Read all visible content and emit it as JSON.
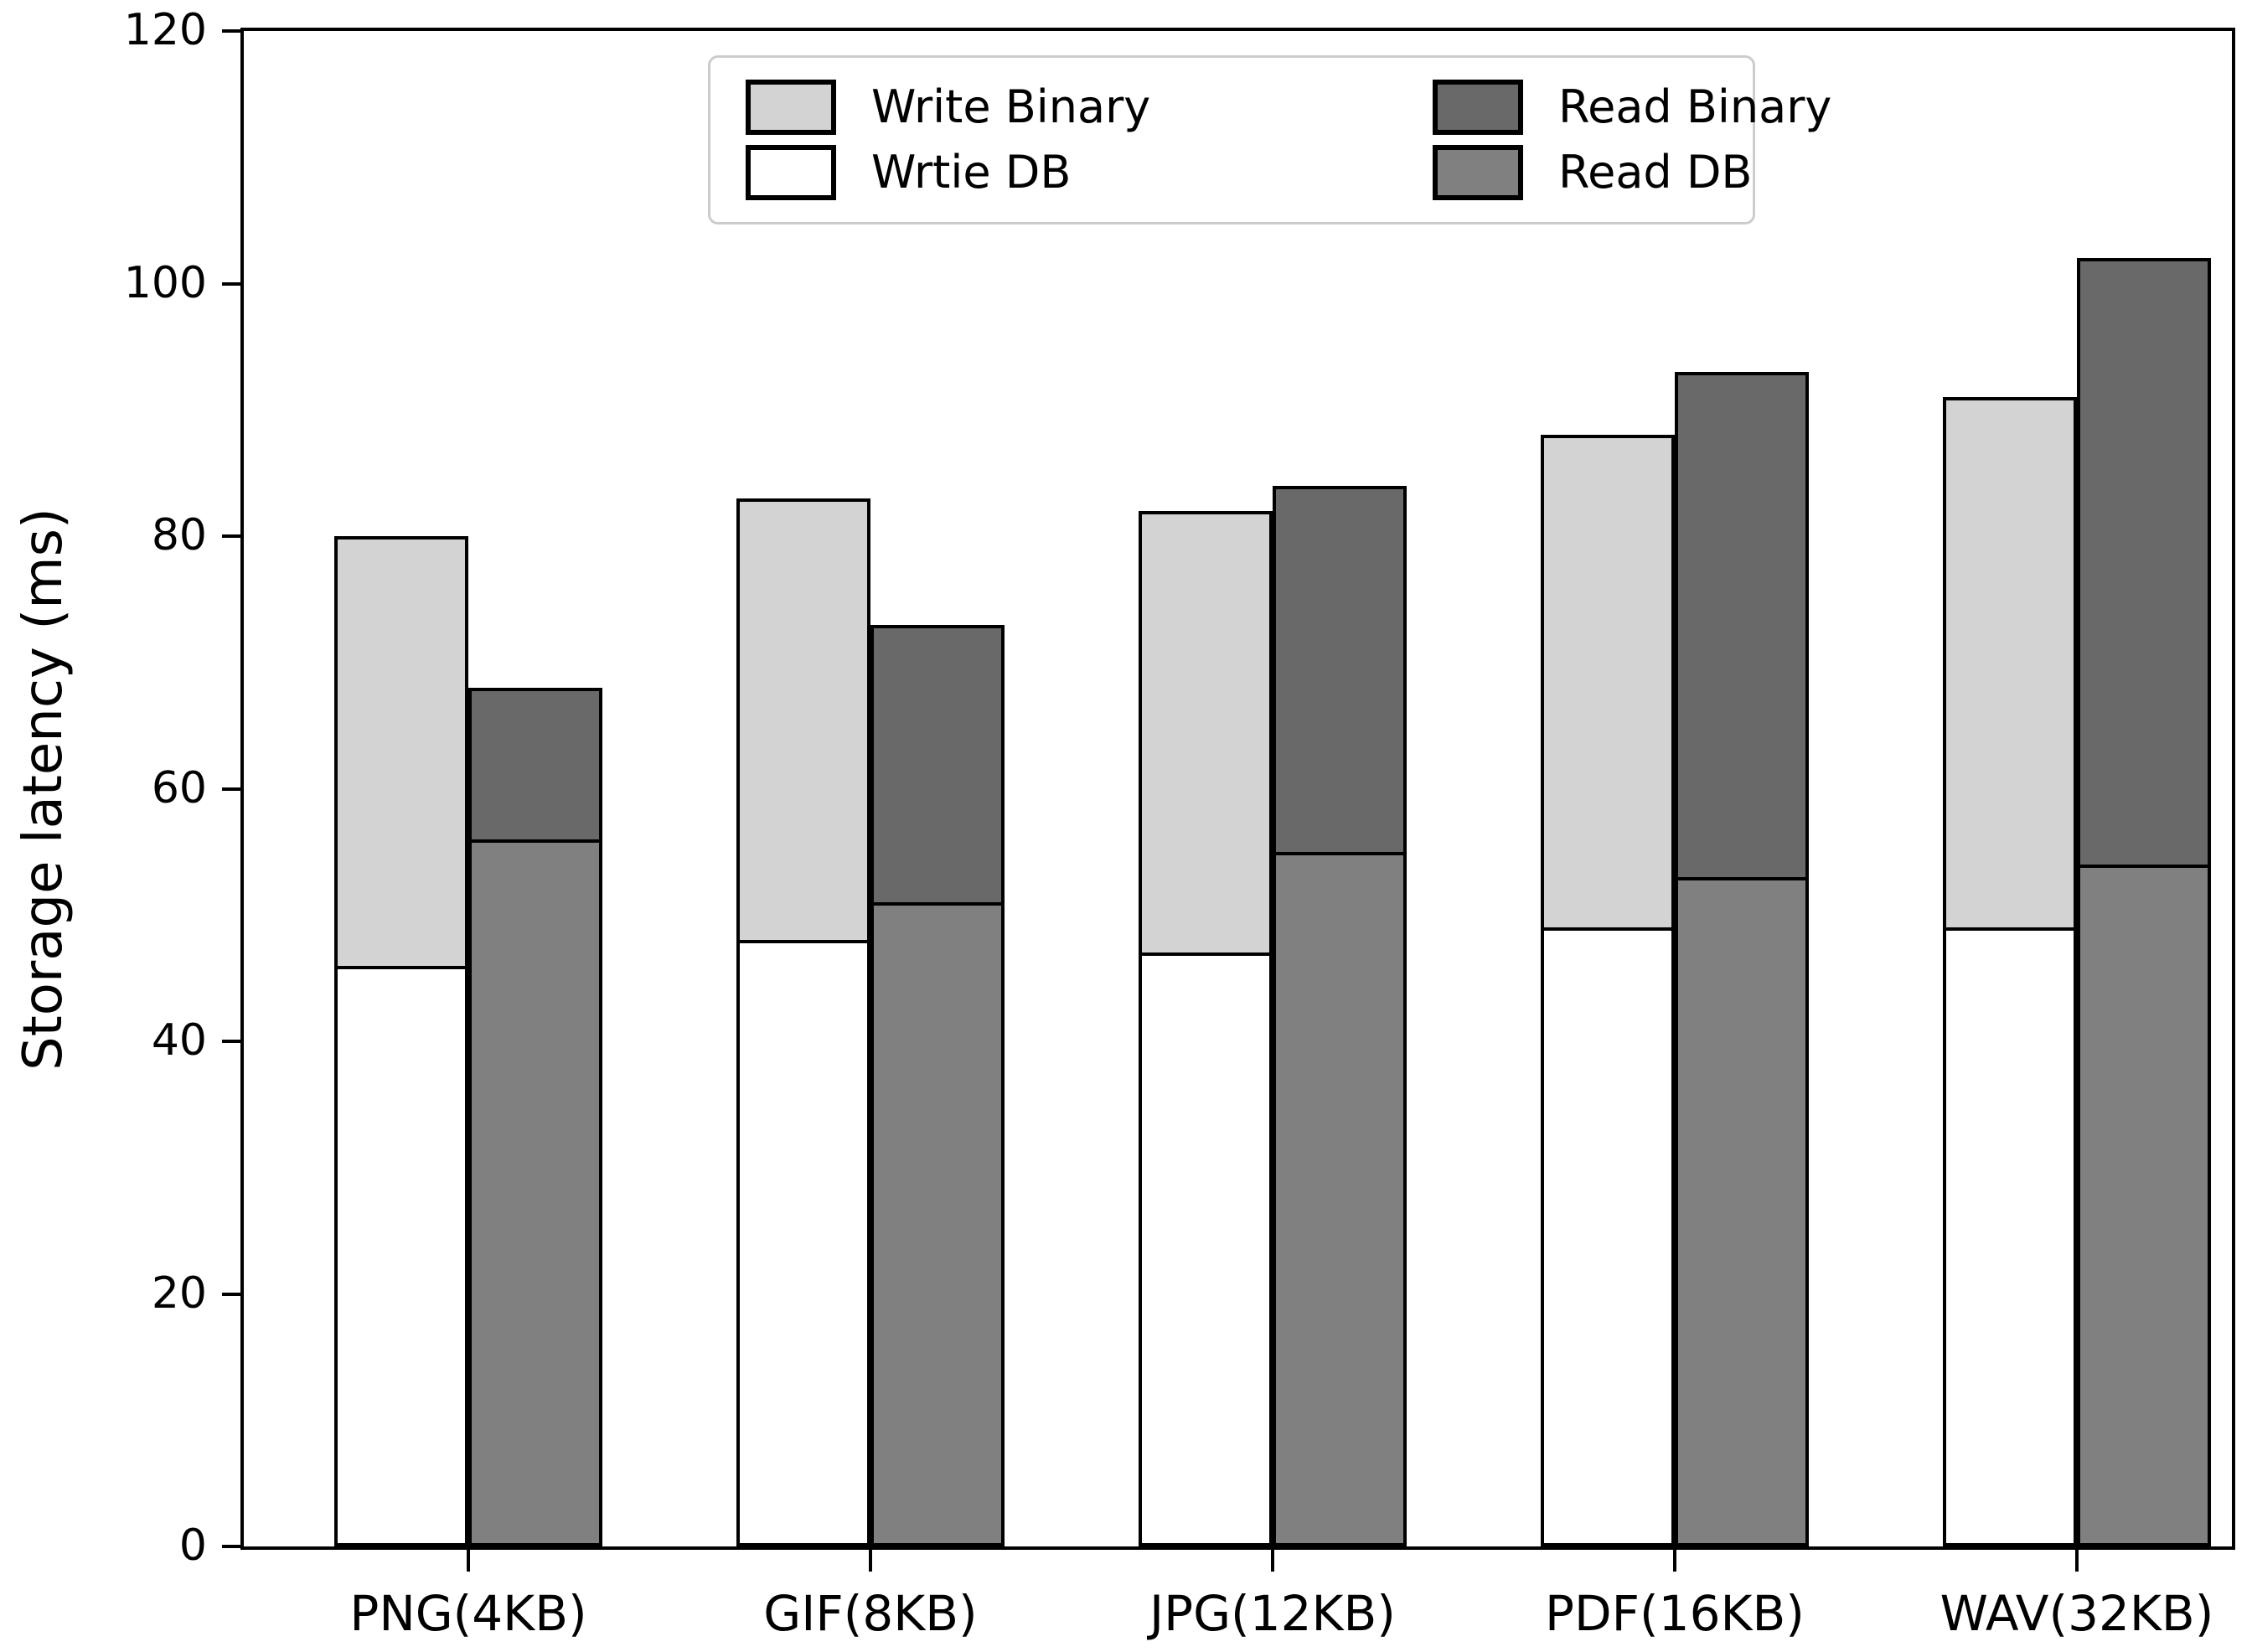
{
  "chart_data": {
    "type": "bar",
    "stacked": true,
    "title": "",
    "xlabel": "",
    "ylabel": "Storage latency (ms)",
    "ylim": [
      0,
      120
    ],
    "yticks": [
      0,
      20,
      40,
      60,
      80,
      100,
      120
    ],
    "grid": false,
    "legend_position": "upper center",
    "categories": [
      "PNG(4KB)",
      "GIF(8KB)",
      "JPG(12KB)",
      "PDF(16KB)",
      "WAV(32KB)"
    ],
    "series": [
      {
        "name": "Wrtie DB",
        "stack": "write",
        "order": 0,
        "color": "#ffffff",
        "edge_color": "#000000",
        "values": [
          46,
          48,
          47,
          49,
          49
        ]
      },
      {
        "name": "Write Binary",
        "stack": "write",
        "order": 1,
        "color": "#d3d3d3",
        "edge_color": "#000000",
        "values": [
          34,
          35,
          35,
          39,
          42
        ]
      },
      {
        "name": "Read DB",
        "stack": "read",
        "order": 0,
        "color": "#808080",
        "edge_color": "#000000",
        "values": [
          56,
          51,
          55,
          53,
          54
        ]
      },
      {
        "name": "Read Binary",
        "stack": "read",
        "order": 1,
        "color": "#696969",
        "edge_color": "#000000",
        "values": [
          12,
          22,
          29,
          40,
          48
        ]
      }
    ],
    "stack_totals": {
      "write": [
        80,
        83,
        82,
        88,
        91
      ],
      "read": [
        68,
        73,
        84,
        93,
        102
      ]
    },
    "legend_entries": [
      {
        "label": "Write Binary",
        "color": "#d3d3d3"
      },
      {
        "label": "Wrtie DB",
        "color": "#ffffff"
      },
      {
        "label": "Read Binary",
        "color": "#696969"
      },
      {
        "label": "Read DB",
        "color": "#808080"
      }
    ]
  }
}
